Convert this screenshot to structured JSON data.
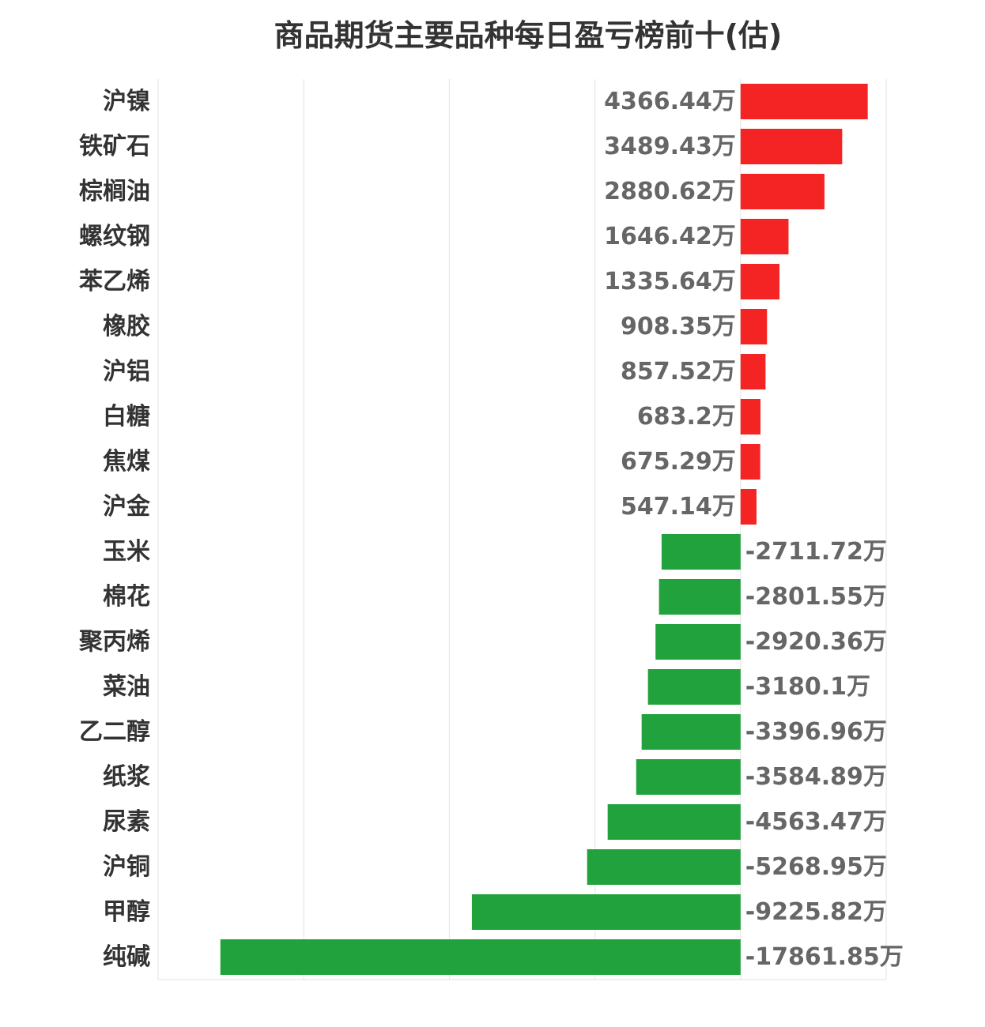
{
  "title": "商品期货主要品种每日盈亏榜前十(估)",
  "colors": {
    "profit": "#f52424",
    "loss": "#21a23c",
    "grid": "#e3e3e3",
    "label": "#333333",
    "value": "#666666"
  },
  "chart_data": {
    "type": "bar",
    "orientation": "horizontal",
    "title": "商品期货主要品种每日盈亏榜前十(估)",
    "unit": "万",
    "categories": [
      "沪镍",
      "铁矿石",
      "棕榈油",
      "螺纹钢",
      "苯乙烯",
      "橡胶",
      "沪铝",
      "白糖",
      "焦煤",
      "沪金",
      "玉米",
      "棉花",
      "聚丙烯",
      "菜油",
      "乙二醇",
      "纸浆",
      "尿素",
      "沪铜",
      "甲醇",
      "纯碱"
    ],
    "values": [
      4366.44,
      3489.43,
      2880.62,
      1646.42,
      1335.64,
      908.35,
      857.52,
      683.2,
      675.29,
      547.14,
      -2711.72,
      -2801.55,
      -2920.36,
      -3180.1,
      -3396.96,
      -3584.89,
      -4563.47,
      -5268.95,
      -9225.82,
      -17861.85
    ],
    "value_labels": [
      "4366.44万",
      "3489.43万",
      "2880.62万",
      "1646.42万",
      "1335.64万",
      "908.35万",
      "857.52万",
      "683.2万",
      "675.29万",
      "547.14万",
      "-2711.72万",
      "-2801.55万",
      "-2920.36万",
      "-3180.1万",
      "-3396.96万",
      "-3584.89万",
      "-4563.47万",
      "-5268.95万",
      "-9225.82万",
      "-17861.85万"
    ],
    "xlim": [
      -20000,
      5000
    ],
    "grid": "vertical",
    "legend": "none"
  }
}
